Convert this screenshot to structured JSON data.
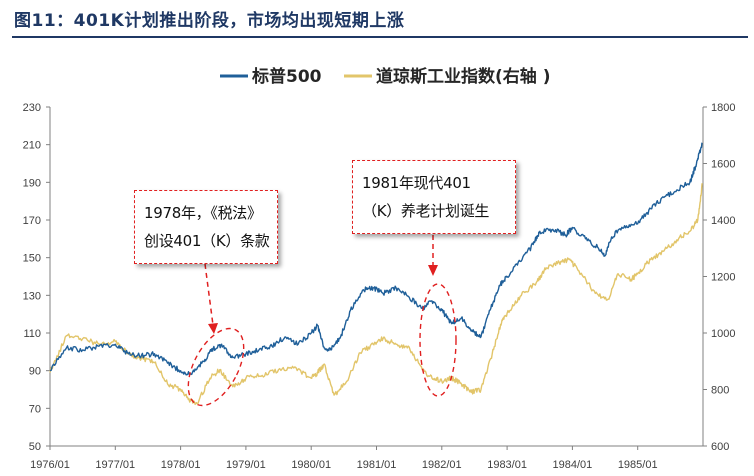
{
  "title": "图11：401K计划推出阶段，市场均出现短期上涨",
  "chart_data": {
    "type": "line",
    "title": "图11：401K计划推出阶段，市场均出现短期上涨",
    "xlabel": "",
    "ylabel_left": "",
    "ylabel_right": "",
    "x_ticks": [
      "1976/01",
      "1977/01",
      "1978/01",
      "1979/01",
      "1980/01",
      "1981/01",
      "1982/01",
      "1983/01",
      "1984/01",
      "1985/01"
    ],
    "ylim_left": [
      50,
      230
    ],
    "yticks_left": [
      50,
      70,
      90,
      110,
      130,
      150,
      170,
      190,
      210,
      230
    ],
    "ylim_right": [
      600,
      1800
    ],
    "yticks_right": [
      600,
      800,
      1000,
      1200,
      1400,
      1600,
      1800
    ],
    "grid": false,
    "legend_position": "top-center",
    "series": [
      {
        "name": "标普500",
        "axis": "left",
        "color": "#1f5f99",
        "x": [
          1976.0,
          1976.25,
          1976.5,
          1976.75,
          1977.0,
          1977.2,
          1977.4,
          1977.6,
          1977.8,
          1978.0,
          1978.17,
          1978.35,
          1978.5,
          1978.65,
          1978.8,
          1979.0,
          1979.2,
          1979.4,
          1979.6,
          1979.8,
          1980.0,
          1980.1,
          1980.2,
          1980.3,
          1980.45,
          1980.6,
          1980.8,
          1980.95,
          1981.1,
          1981.3,
          1981.5,
          1981.7,
          1981.85,
          1982.0,
          1982.15,
          1982.3,
          1982.45,
          1982.6,
          1982.75,
          1982.9,
          1983.0,
          1983.2,
          1983.4,
          1983.5,
          1983.7,
          1983.9,
          1984.0,
          1984.2,
          1984.4,
          1984.5,
          1984.6,
          1984.8,
          1985.0,
          1985.2,
          1985.4,
          1985.6,
          1985.8,
          1985.9,
          1985.99
        ],
        "values": [
          90,
          102,
          101,
          103,
          104,
          99,
          98,
          99,
          94,
          90,
          88,
          95,
          102,
          103,
          97,
          99,
          101,
          103,
          108,
          104,
          110,
          114,
          102,
          101,
          108,
          122,
          133,
          134,
          131,
          134,
          129,
          123,
          127,
          122,
          115,
          118,
          111,
          108,
          123,
          136,
          140,
          148,
          157,
          164,
          165,
          162,
          166,
          160,
          155,
          151,
          161,
          167,
          168,
          176,
          182,
          186,
          190,
          200,
          211
        ]
      },
      {
        "name": "道琼斯工业指数(右轴 )",
        "axis": "right",
        "color": "#e2c56a",
        "x": [
          1976.0,
          1976.25,
          1976.5,
          1976.75,
          1977.0,
          1977.2,
          1977.4,
          1977.6,
          1977.8,
          1978.0,
          1978.15,
          1978.25,
          1978.45,
          1978.6,
          1978.8,
          1979.0,
          1979.25,
          1979.5,
          1979.75,
          1980.0,
          1980.1,
          1980.2,
          1980.35,
          1980.55,
          1980.75,
          1980.95,
          1981.1,
          1981.3,
          1981.5,
          1981.7,
          1981.85,
          1982.0,
          1982.15,
          1982.3,
          1982.45,
          1982.6,
          1982.75,
          1982.9,
          1983.0,
          1983.2,
          1983.45,
          1983.6,
          1983.8,
          1983.95,
          1984.1,
          1984.35,
          1984.55,
          1984.7,
          1984.9,
          1985.0,
          1985.2,
          1985.4,
          1985.6,
          1985.8,
          1985.92,
          1985.99
        ],
        "values": [
          860,
          990,
          980,
          960,
          970,
          925,
          910,
          895,
          820,
          800,
          760,
          750,
          840,
          870,
          810,
          840,
          850,
          870,
          880,
          840,
          860,
          890,
          780,
          830,
          930,
          960,
          980,
          960,
          950,
          870,
          840,
          830,
          840,
          820,
          790,
          800,
          910,
          1030,
          1070,
          1130,
          1180,
          1230,
          1250,
          1260,
          1220,
          1140,
          1120,
          1210,
          1190,
          1210,
          1260,
          1290,
          1330,
          1360,
          1400,
          1530
        ]
      }
    ],
    "annotations": [
      {
        "lines": [
          "1978年，《税法》",
          "创设401（K）条款"
        ],
        "x": 1978.65,
        "y_left": 102
      },
      {
        "lines": [
          "1981年现代401",
          "（K）养老计划诞生"
        ],
        "x": 1981.85,
        "y_left": 127
      }
    ]
  }
}
